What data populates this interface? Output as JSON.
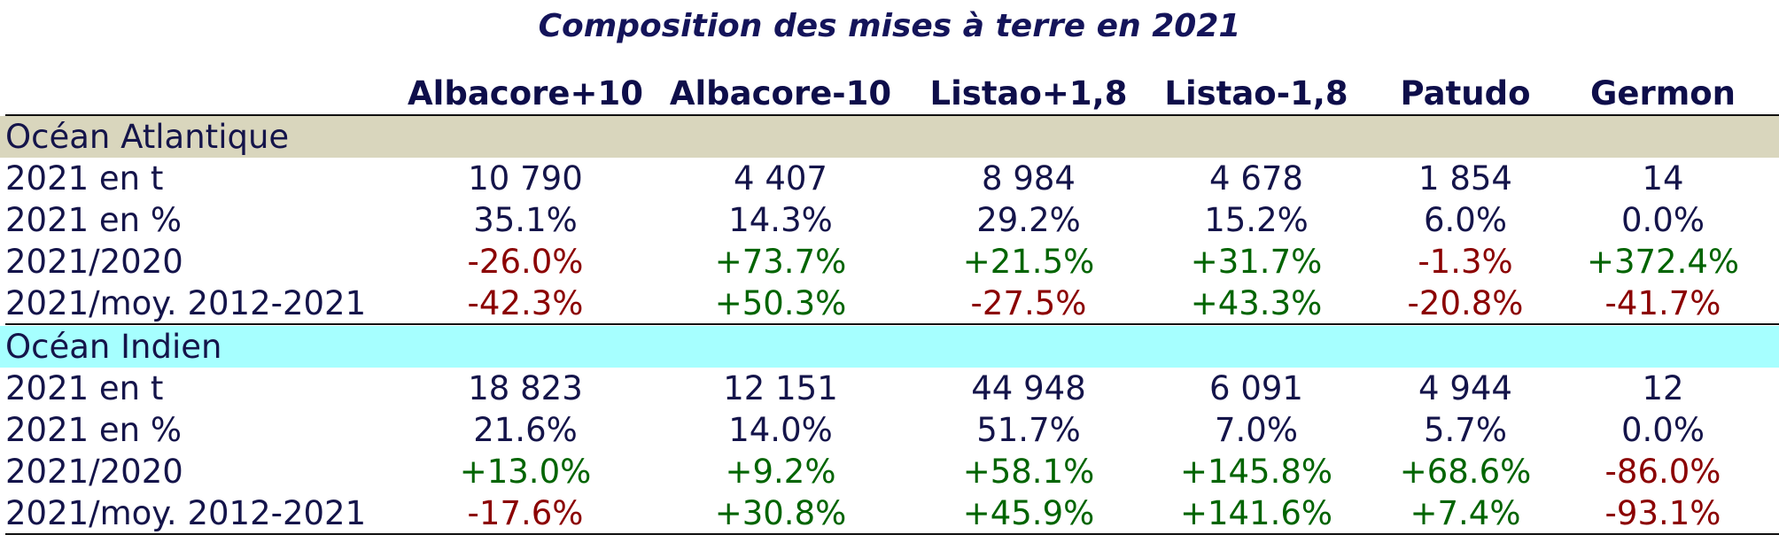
{
  "title": "Composition des mises à terre en 2021",
  "columns": [
    "Albacore+10",
    "Albacore-10",
    "Listao+1,8",
    "Listao-1,8",
    "Patudo",
    "Germon"
  ],
  "sections": [
    {
      "name": "Océan Atlantique",
      "rows": [
        {
          "label": "2021 en t",
          "cells": [
            "10 790",
            "4 407",
            "8 984",
            "4 678",
            "1 854",
            "14"
          ]
        },
        {
          "label": "2021 en %",
          "cells": [
            "35.1%",
            "14.3%",
            "29.2%",
            "15.2%",
            "6.0%",
            "0.0%"
          ]
        },
        {
          "label": "2021/2020",
          "cells": [
            "-26.0%",
            "+73.7%",
            "+21.5%",
            "+31.7%",
            "-1.3%",
            "+372.4%"
          ]
        },
        {
          "label": "2021/moy. 2012-2021",
          "cells": [
            "-42.3%",
            "+50.3%",
            "-27.5%",
            "+43.3%",
            "-20.8%",
            "-41.7%"
          ]
        }
      ]
    },
    {
      "name": "Océan Indien",
      "rows": [
        {
          "label": "2021 en t",
          "cells": [
            "18 823",
            "12 151",
            "44 948",
            "6 091",
            "4 944",
            "12"
          ]
        },
        {
          "label": "2021 en %",
          "cells": [
            "21.6%",
            "14.0%",
            "51.7%",
            "7.0%",
            "5.7%",
            "0.0%"
          ]
        },
        {
          "label": "2021/2020",
          "cells": [
            "+13.0%",
            "+9.2%",
            "+58.1%",
            "+145.8%",
            "+68.6%",
            "-86.0%"
          ]
        },
        {
          "label": "2021/moy. 2012-2021",
          "cells": [
            "-17.6%",
            "+30.8%",
            "+45.9%",
            "+141.6%",
            "+7.4%",
            "-93.1%"
          ]
        }
      ]
    }
  ]
}
